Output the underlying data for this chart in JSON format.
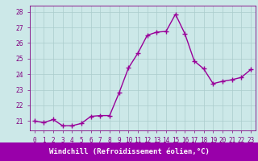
{
  "x": [
    0,
    1,
    2,
    3,
    4,
    5,
    6,
    7,
    8,
    9,
    10,
    11,
    12,
    13,
    14,
    15,
    16,
    17,
    18,
    19,
    20,
    21,
    22,
    23
  ],
  "y": [
    21.0,
    20.9,
    21.1,
    20.7,
    20.7,
    20.85,
    21.3,
    21.35,
    21.35,
    22.8,
    24.4,
    25.35,
    26.5,
    26.7,
    26.75,
    27.85,
    26.6,
    24.85,
    24.35,
    23.4,
    23.55,
    23.65,
    23.8,
    24.3
  ],
  "line_color": "#990099",
  "marker": "+",
  "markersize": 4,
  "linewidth": 1.0,
  "markeredgewidth": 1.0,
  "xlabel": "Windchill (Refroidissement éolien,°C)",
  "xlabel_fontsize": 6.5,
  "ylabel_ticks": [
    21,
    22,
    23,
    24,
    25,
    26,
    27,
    28
  ],
  "xtick_labels": [
    "0",
    "1",
    "2",
    "3",
    "4",
    "5",
    "6",
    "7",
    "8",
    "9",
    "10",
    "11",
    "12",
    "13",
    "14",
    "15",
    "16",
    "17",
    "18",
    "19",
    "20",
    "21",
    "22",
    "23"
  ],
  "ylim": [
    20.4,
    28.4
  ],
  "xlim": [
    -0.5,
    23.5
  ],
  "background_color": "#cce8e8",
  "grid_color": "#aacccc",
  "tick_fontsize": 5.5,
  "xlabel_bg": "#9900aa",
  "xlabel_fg": "#ffffff",
  "tick_color": "#800080",
  "spine_color": "#800080"
}
